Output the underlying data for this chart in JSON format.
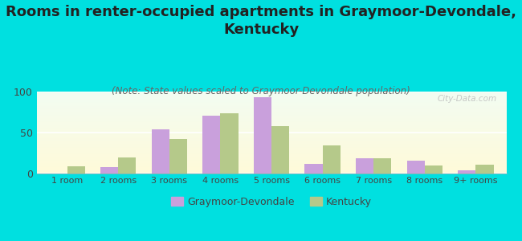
{
  "categories": [
    "1 room",
    "2 rooms",
    "3 rooms",
    "4 rooms",
    "5 rooms",
    "6 rooms",
    "7 rooms",
    "8 rooms",
    "9+ rooms"
  ],
  "graymoor_values": [
    0,
    8,
    54,
    71,
    93,
    12,
    19,
    16,
    4
  ],
  "kentucky_values": [
    9,
    20,
    42,
    74,
    58,
    34,
    19,
    10,
    11
  ],
  "graymoor_color": "#c9a0dc",
  "kentucky_color": "#b5c98a",
  "title": "Rooms in renter-occupied apartments in Graymoor-Devondale,\nKentucky",
  "subtitle": "(Note: State values scaled to Graymoor-Devondale population)",
  "ylim": [
    0,
    100
  ],
  "yticks": [
    0,
    50,
    100
  ],
  "background_outer": "#00e0e0",
  "legend_graymoor": "Graymoor-Devondale",
  "legend_kentucky": "Kentucky",
  "watermark": "City-Data.com",
  "title_fontsize": 13,
  "subtitle_fontsize": 8.5,
  "bar_width": 0.35
}
